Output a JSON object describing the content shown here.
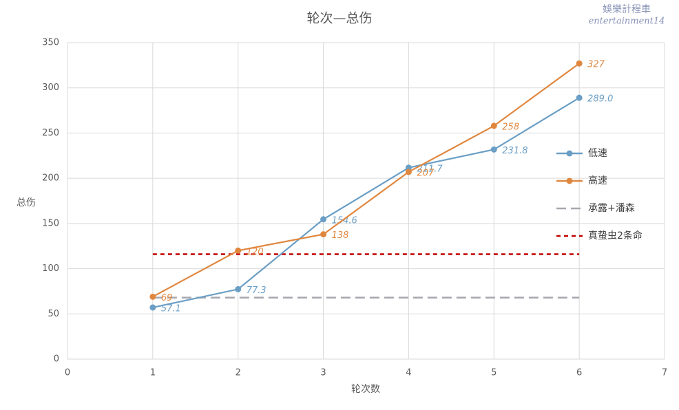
{
  "chart_data": {
    "type": "line",
    "title": "轮次—总伤",
    "watermark": [
      "娛樂計程車",
      "entertainment14"
    ],
    "x_label": "轮次数",
    "y_label": "总伤",
    "xlim": [
      0,
      7
    ],
    "xticks": [
      0,
      1,
      2,
      3,
      4,
      5,
      6,
      7
    ],
    "ylim": [
      0,
      350
    ],
    "yticks": [
      0,
      50,
      100,
      150,
      200,
      250,
      300,
      350
    ],
    "grid": true,
    "legend": "right",
    "series": [
      {
        "name": "低速",
        "color": "#6a9ec5",
        "dash": "solid",
        "markers": true,
        "x": [
          1,
          2,
          3,
          4,
          5,
          6
        ],
        "values": [
          57.1,
          77.3,
          154.6,
          211.7,
          231.8,
          289
        ],
        "value_labels": [
          "57.1",
          "77.3",
          "154.6",
          "211.7",
          "231.8",
          "289.0"
        ]
      },
      {
        "name": "高速",
        "color": "#e0873f",
        "dash": "solid",
        "markers": true,
        "x": [
          1,
          2,
          3,
          4,
          5,
          6
        ],
        "values": [
          69,
          120,
          138,
          207,
          258,
          327
        ]
      },
      {
        "name": "承露+潘森",
        "color": "#a6a6ae",
        "dash": "long",
        "markers": false,
        "x": [
          1,
          6
        ],
        "values": [
          68,
          68
        ]
      },
      {
        "name": "真蛰虫2条命",
        "color": "#c00000",
        "dash": "short",
        "markers": false,
        "x": [
          1,
          6
        ],
        "values": [
          116,
          116
        ]
      }
    ]
  }
}
